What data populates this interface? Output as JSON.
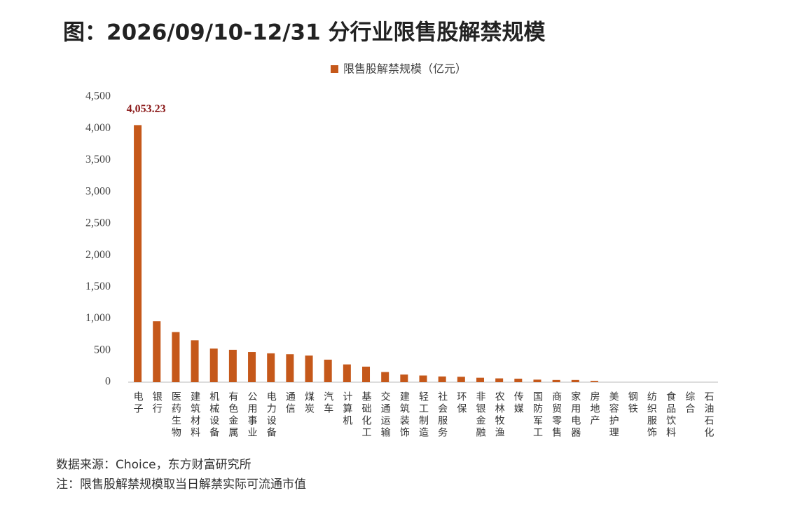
{
  "chart_data": {
    "type": "bar",
    "title": "图：2026/09/10-12/31 分行业限售股解禁规模",
    "categories": [
      "电子",
      "银行",
      "医药生物",
      "建筑材料",
      "机械设备",
      "有色金属",
      "公用事业",
      "电力设备",
      "通信",
      "煤炭",
      "汽车",
      "计算机",
      "基础化工",
      "交通运输",
      "建筑装饰",
      "轻工制造",
      "社会服务",
      "环保",
      "非银金融",
      "农林牧渔",
      "传媒",
      "国防军工",
      "商贸零售",
      "家用电器",
      "房地产",
      "美容护理",
      "钢铁",
      "纺织服饰",
      "食品饮料",
      "综合",
      "石油石化"
    ],
    "series": [
      {
        "name": "限售股解禁规模（亿元）",
        "color": "#c5581a",
        "values": [
          4053.23,
          960,
          790,
          660,
          530,
          510,
          475,
          455,
          440,
          420,
          355,
          280,
          245,
          160,
          120,
          105,
          90,
          85,
          70,
          60,
          55,
          40,
          35,
          35,
          20,
          0,
          0,
          0,
          0,
          0,
          0
        ],
        "value_labels": [
          "4,053.23",
          null,
          null,
          null,
          null,
          null,
          null,
          null,
          null,
          null,
          null,
          null,
          null,
          null,
          null,
          null,
          null,
          null,
          null,
          null,
          null,
          null,
          null,
          null,
          null,
          null,
          null,
          null,
          null,
          null,
          null
        ]
      }
    ],
    "ylim": [
      0,
      4500
    ],
    "yticks": [
      0,
      500,
      {
        "value": 1000,
        "label": "1,000"
      },
      {
        "value": 1500,
        "label": "1,500"
      },
      {
        "value": 2000,
        "label": "2,000"
      },
      {
        "value": 2500,
        "label": "2,500"
      },
      {
        "value": 3000,
        "label": "3,000"
      },
      {
        "value": 3500,
        "label": "3,500"
      },
      {
        "value": 4000,
        "label": "4,000"
      },
      {
        "value": 4500,
        "label": "4,500"
      }
    ],
    "grid": false,
    "legend": "top",
    "source": "数据来源：Choice，东方财富研究所",
    "note": "注：限售股解禁规模取当日解禁实际可流通市值"
  }
}
